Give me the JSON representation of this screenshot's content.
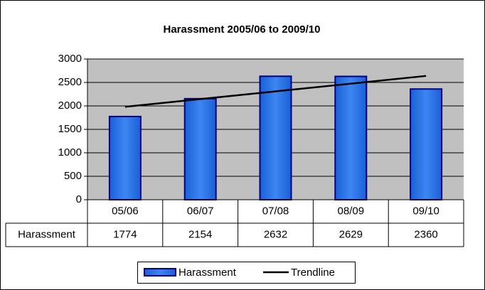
{
  "chart_data": {
    "type": "bar",
    "title": "Harassment 2005/06 to 2009/10",
    "categories": [
      "05/06",
      "06/07",
      "07/08",
      "08/09",
      "09/10"
    ],
    "series": [
      {
        "name": "Harassment",
        "color": "#1a5fd6",
        "values": [
          1774,
          2154,
          2632,
          2629,
          2360
        ]
      },
      {
        "name": "Trendline",
        "type": "line",
        "color": "#000000",
        "values": [
          1980.4,
          2145.1,
          2309.8,
          2474.5,
          2639.2
        ]
      }
    ],
    "ylim": [
      0,
      3000
    ],
    "yticks": [
      0,
      500,
      1000,
      1500,
      2000,
      2500,
      3000
    ],
    "grid": true,
    "data_table": true
  }
}
